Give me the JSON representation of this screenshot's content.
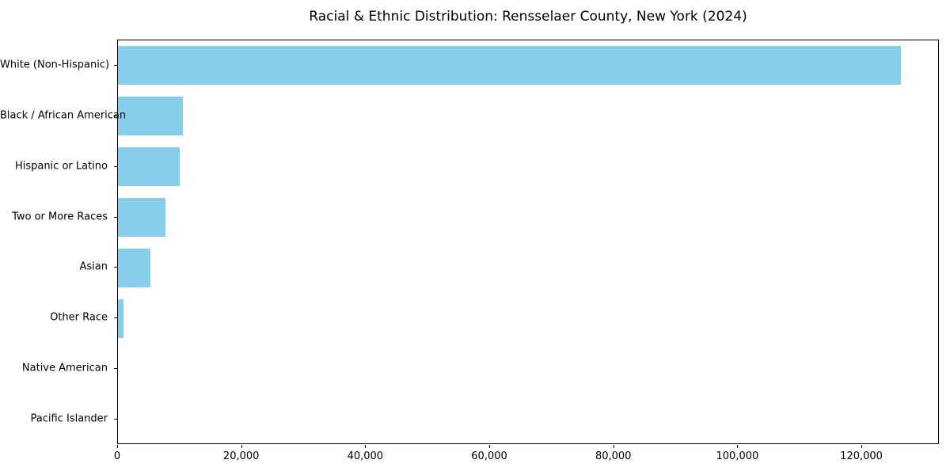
{
  "chart_data": {
    "type": "bar",
    "orientation": "horizontal",
    "title": "Racial & Ethnic Distribution: Rensselaer County, New York (2024)",
    "categories": [
      "White (Non-Hispanic)",
      "Black / African American",
      "Hispanic or Latino",
      "Two or More Races",
      "Asian",
      "Other Race",
      "Native American",
      "Pacific Islander"
    ],
    "values": [
      126200,
      10500,
      9900,
      7700,
      5200,
      850,
      0,
      0
    ],
    "xlabel": "",
    "ylabel": "",
    "xlim": [
      0,
      132500
    ],
    "xticks": [
      0,
      20000,
      40000,
      60000,
      80000,
      100000,
      120000
    ],
    "xtick_labels": [
      "0",
      "20,000",
      "40,000",
      "60,000",
      "80,000",
      "100,000",
      "120,000"
    ],
    "bar_color": "#87CEEB",
    "frame_color": "#000000",
    "text_color": "#000000",
    "grid": false,
    "legend": null
  }
}
